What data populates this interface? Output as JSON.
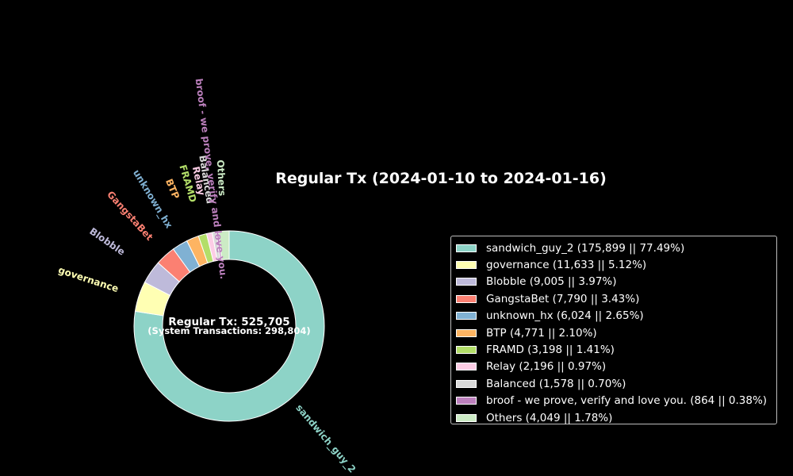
{
  "chart_data": {
    "type": "pie",
    "style": "donut",
    "title": "Regular Tx (2024-01-10 to 2024-01-16)",
    "center_text": {
      "line1": "Regular Tx: 525,705",
      "line2": "(System Transactions: 298,804)"
    },
    "legend_position": "right",
    "slices": [
      {
        "label": "sandwich_guy_2",
        "value": 175899,
        "percent": 77.49,
        "color": "#8dd3c7",
        "legend": "sandwich_guy_2 (175,899 || 77.49%)"
      },
      {
        "label": "governance",
        "value": 11633,
        "percent": 5.12,
        "color": "#ffffb3",
        "legend": "governance (11,633 || 5.12%)"
      },
      {
        "label": "Blobble",
        "value": 9005,
        "percent": 3.97,
        "color": "#bebada",
        "legend": "Blobble (9,005 || 3.97%)"
      },
      {
        "label": "GangstaBet",
        "value": 7790,
        "percent": 3.43,
        "color": "#fb8072",
        "legend": "GangstaBet (7,790 || 3.43%)"
      },
      {
        "label": "unknown_hx",
        "value": 6024,
        "percent": 2.65,
        "color": "#80b1d3",
        "legend": "unknown_hx (6,024 || 2.65%)"
      },
      {
        "label": "BTP",
        "value": 4771,
        "percent": 2.1,
        "color": "#fdb462",
        "legend": "BTP (4,771 || 2.10%)"
      },
      {
        "label": "FRAMD",
        "value": 3198,
        "percent": 1.41,
        "color": "#b3de69",
        "legend": "FRAMD (3,198 || 1.41%)"
      },
      {
        "label": "Relay",
        "value": 2196,
        "percent": 0.97,
        "color": "#fccde5",
        "legend": "Relay (2,196 || 0.97%)"
      },
      {
        "label": "Balanced",
        "value": 1578,
        "percent": 0.7,
        "color": "#d9d9d9",
        "legend": "Balanced (1,578 || 0.70%)"
      },
      {
        "label": "broof - we prove, verify and love you.",
        "value": 864,
        "percent": 0.38,
        "color": "#bc80bd",
        "legend": "broof - we prove, verify and love you. (864 || 0.38%)"
      },
      {
        "label": "Others",
        "value": 4049,
        "percent": 1.78,
        "color": "#ccebc5",
        "legend": "Others (4,049 || 1.78%)"
      }
    ]
  }
}
